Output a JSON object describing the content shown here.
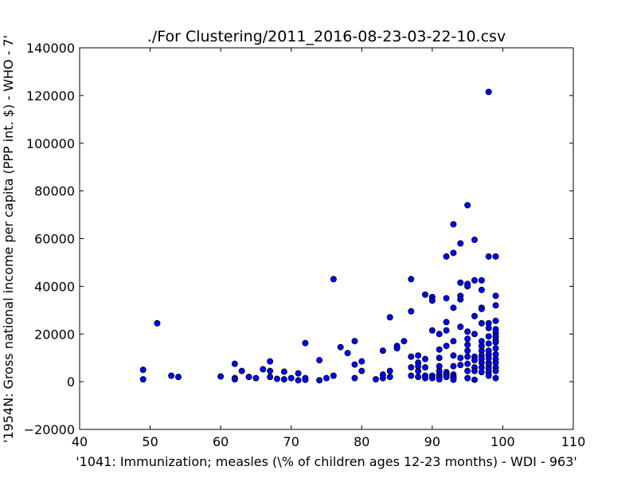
{
  "chart_data": {
    "type": "scatter",
    "title": "./For Clustering/2011_2016-08-23-03-22-10.csv",
    "xlabel": "'1041: Immunization; measles  (\\% of children ages 12-23 months) - WDI - 963'",
    "ylabel": "'1954N: Gross national income per capita (PPP int. $) - WHO - 7'",
    "xlim": [
      40,
      110
    ],
    "ylim": [
      -20000,
      140000
    ],
    "xticks": [
      "40",
      "50",
      "60",
      "70",
      "80",
      "90",
      "100",
      "110"
    ],
    "yticks": [
      "−20000",
      "0",
      "20000",
      "40000",
      "60000",
      "80000",
      "100000",
      "120000",
      "140000"
    ],
    "grid": false,
    "marker_color": "#0000ff",
    "points": [
      [
        49,
        5000
      ],
      [
        49,
        1000
      ],
      [
        51,
        24500
      ],
      [
        53,
        2500
      ],
      [
        54,
        2000
      ],
      [
        60,
        2200
      ],
      [
        62,
        7500
      ],
      [
        62,
        1500
      ],
      [
        62,
        1000
      ],
      [
        63,
        4500
      ],
      [
        64,
        2000
      ],
      [
        65,
        1500
      ],
      [
        66,
        5200
      ],
      [
        67,
        8500
      ],
      [
        67,
        4500
      ],
      [
        67,
        2000
      ],
      [
        68,
        1200
      ],
      [
        69,
        4200
      ],
      [
        69,
        1000
      ],
      [
        70,
        1500
      ],
      [
        71,
        3500
      ],
      [
        71,
        600
      ],
      [
        72,
        16200
      ],
      [
        72,
        1500
      ],
      [
        72,
        800
      ],
      [
        74,
        9000
      ],
      [
        74,
        600
      ],
      [
        75,
        1500
      ],
      [
        76,
        43000
      ],
      [
        76,
        2500
      ],
      [
        77,
        14500
      ],
      [
        78,
        12000
      ],
      [
        79,
        17000
      ],
      [
        79,
        7200
      ],
      [
        79,
        1500
      ],
      [
        80,
        8500
      ],
      [
        80,
        4500
      ],
      [
        82,
        1000
      ],
      [
        83,
        13000
      ],
      [
        83,
        3000
      ],
      [
        83,
        1500
      ],
      [
        84,
        27000
      ],
      [
        84,
        4500
      ],
      [
        84,
        2000
      ],
      [
        85,
        15000
      ],
      [
        85,
        14000
      ],
      [
        86,
        17000
      ],
      [
        87,
        43000
      ],
      [
        87,
        29500
      ],
      [
        87,
        10500
      ],
      [
        87,
        6000
      ],
      [
        87,
        2500
      ],
      [
        88,
        11000
      ],
      [
        88,
        8000
      ],
      [
        88,
        6500
      ],
      [
        88,
        4500
      ],
      [
        88,
        2000
      ],
      [
        89,
        36500
      ],
      [
        89,
        9500
      ],
      [
        89,
        6000
      ],
      [
        89,
        2500
      ],
      [
        89,
        1500
      ],
      [
        90,
        35500
      ],
      [
        90,
        34000
      ],
      [
        90,
        21500
      ],
      [
        90,
        2500
      ],
      [
        90,
        1500
      ],
      [
        91,
        20000
      ],
      [
        91,
        13500
      ],
      [
        91,
        10000
      ],
      [
        91,
        6500
      ],
      [
        91,
        4500
      ],
      [
        91,
        3000
      ],
      [
        91,
        2000
      ],
      [
        91,
        1000
      ],
      [
        92,
        52500
      ],
      [
        92,
        35000
      ],
      [
        92,
        25000
      ],
      [
        92,
        21500
      ],
      [
        92,
        15000
      ],
      [
        92,
        4000
      ],
      [
        92,
        3000
      ],
      [
        92,
        2000
      ],
      [
        93,
        66000
      ],
      [
        93,
        54000
      ],
      [
        93,
        31000
      ],
      [
        93,
        17000
      ],
      [
        93,
        11000
      ],
      [
        93,
        6500
      ],
      [
        93,
        3000
      ],
      [
        93,
        2000
      ],
      [
        93,
        1500
      ],
      [
        93,
        800
      ],
      [
        94,
        58000
      ],
      [
        94,
        41500
      ],
      [
        94,
        36000
      ],
      [
        94,
        34500
      ],
      [
        94,
        23000
      ],
      [
        94,
        10000
      ],
      [
        94,
        7000
      ],
      [
        95,
        74000
      ],
      [
        95,
        41000
      ],
      [
        95,
        40000
      ],
      [
        95,
        21000
      ],
      [
        95,
        18000
      ],
      [
        95,
        15500
      ],
      [
        95,
        13000
      ],
      [
        95,
        10500
      ],
      [
        95,
        7500
      ],
      [
        95,
        4500
      ],
      [
        95,
        1500
      ],
      [
        96,
        59500
      ],
      [
        96,
        42500
      ],
      [
        96,
        27500
      ],
      [
        96,
        20000
      ],
      [
        96,
        10500
      ],
      [
        96,
        9000
      ],
      [
        96,
        6000
      ],
      [
        96,
        4500
      ],
      [
        96,
        800
      ],
      [
        97,
        42500
      ],
      [
        97,
        38500
      ],
      [
        97,
        31000
      ],
      [
        97,
        30500
      ],
      [
        97,
        24500
      ],
      [
        97,
        17000
      ],
      [
        97,
        15000
      ],
      [
        97,
        13000
      ],
      [
        97,
        11000
      ],
      [
        97,
        9500
      ],
      [
        97,
        8000
      ],
      [
        97,
        6000
      ],
      [
        97,
        4000
      ],
      [
        98,
        121500
      ],
      [
        98,
        52500
      ],
      [
        98,
        24500
      ],
      [
        98,
        22500
      ],
      [
        98,
        19000
      ],
      [
        98,
        16000
      ],
      [
        98,
        13000
      ],
      [
        98,
        11500
      ],
      [
        98,
        10000
      ],
      [
        98,
        8000
      ],
      [
        98,
        7000
      ],
      [
        98,
        5500
      ],
      [
        98,
        4000
      ],
      [
        98,
        2500
      ],
      [
        99,
        52500
      ],
      [
        99,
        36000
      ],
      [
        99,
        32000
      ],
      [
        99,
        25500
      ],
      [
        99,
        22000
      ],
      [
        99,
        20500
      ],
      [
        99,
        19000
      ],
      [
        99,
        17500
      ],
      [
        99,
        16500
      ],
      [
        99,
        14000
      ],
      [
        99,
        11500
      ],
      [
        99,
        9500
      ],
      [
        99,
        8000
      ],
      [
        99,
        6000
      ],
      [
        99,
        4500
      ],
      [
        99,
        1500
      ]
    ]
  }
}
